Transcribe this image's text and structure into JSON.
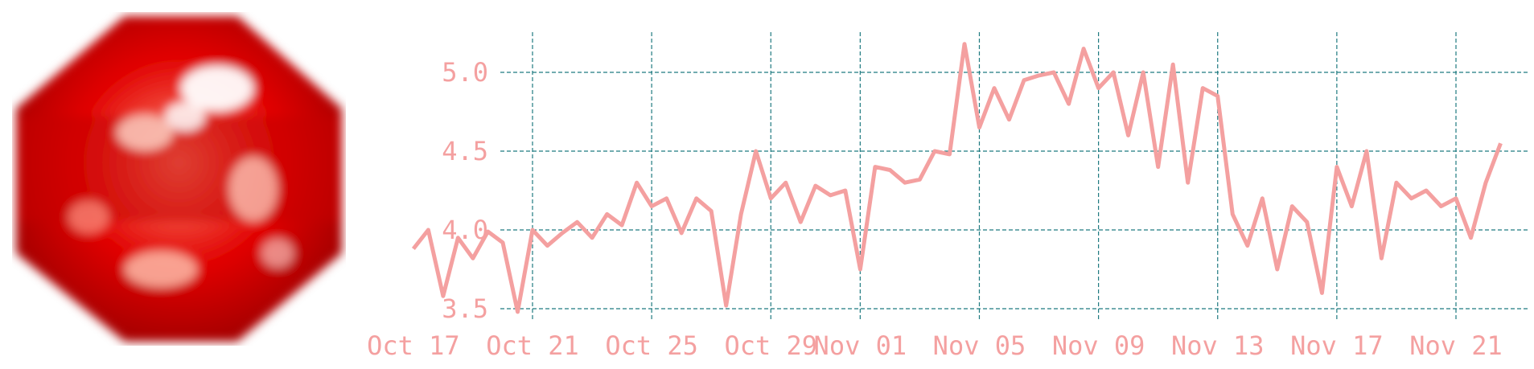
{
  "thumbnail": {
    "name": "red-dice-thumbnail",
    "colors": [
      "#ff0000",
      "#d40000",
      "#ffffff"
    ]
  },
  "chart_data": {
    "type": "line",
    "title": "",
    "xlabel": "",
    "ylabel": "",
    "ylim": [
      3.45,
      5.25
    ],
    "xlim": [
      "2025-10-16",
      "2025-11-23"
    ],
    "grid": true,
    "legend": "none",
    "colors": {
      "line": "#f4a0a0",
      "grid": "#1f7a80",
      "ticks": "#f4a0a0"
    },
    "y_ticks": [
      {
        "value": 3.5,
        "label": "3.5"
      },
      {
        "value": 4.0,
        "label": "4.0"
      },
      {
        "value": 4.5,
        "label": "4.5"
      },
      {
        "value": 5.0,
        "label": "5.0"
      }
    ],
    "x_ticks": [
      {
        "date": "2025-10-17",
        "label": "Oct 17"
      },
      {
        "date": "2025-10-21",
        "label": "Oct 21"
      },
      {
        "date": "2025-10-25",
        "label": "Oct 25"
      },
      {
        "date": "2025-10-29",
        "label": "Oct 29"
      },
      {
        "date": "2025-11-01",
        "label": "Nov 01"
      },
      {
        "date": "2025-11-05",
        "label": "Nov 05"
      },
      {
        "date": "2025-11-09",
        "label": "Nov 09"
      },
      {
        "date": "2025-11-13",
        "label": "Nov 13"
      },
      {
        "date": "2025-11-17",
        "label": "Nov 17"
      },
      {
        "date": "2025-11-21",
        "label": "Nov 21"
      }
    ],
    "series": [
      {
        "x": [
          "2025-10-17",
          "2025-10-17",
          "2025-10-18",
          "2025-10-18",
          "2025-10-19",
          "2025-10-19",
          "2025-10-20",
          "2025-10-20",
          "2025-10-21",
          "2025-10-21",
          "2025-10-22",
          "2025-10-22",
          "2025-10-23",
          "2025-10-23",
          "2025-10-24",
          "2025-10-24",
          "2025-10-25",
          "2025-10-25",
          "2025-10-26",
          "2025-10-26",
          "2025-10-27",
          "2025-10-27",
          "2025-10-28",
          "2025-10-28",
          "2025-10-29",
          "2025-10-29",
          "2025-10-30",
          "2025-10-30",
          "2025-10-31",
          "2025-10-31",
          "2025-11-01",
          "2025-11-01",
          "2025-11-02",
          "2025-11-02",
          "2025-11-03",
          "2025-11-03",
          "2025-11-04",
          "2025-11-04",
          "2025-11-05",
          "2025-11-05",
          "2025-11-06",
          "2025-11-06",
          "2025-11-07",
          "2025-11-07",
          "2025-11-08",
          "2025-11-08",
          "2025-11-09",
          "2025-11-09",
          "2025-11-10",
          "2025-11-10",
          "2025-11-11",
          "2025-11-11",
          "2025-11-12",
          "2025-11-12",
          "2025-11-13",
          "2025-11-13",
          "2025-11-14",
          "2025-11-14",
          "2025-11-15",
          "2025-11-15",
          "2025-11-16",
          "2025-11-16",
          "2025-11-17",
          "2025-11-17",
          "2025-11-18",
          "2025-11-18",
          "2025-11-19",
          "2025-11-19",
          "2025-11-20",
          "2025-11-20",
          "2025-11-21",
          "2025-11-21",
          "2025-11-22",
          "2025-11-22"
        ],
        "values": [
          3.88,
          4.0,
          3.58,
          3.95,
          3.82,
          3.99,
          3.92,
          3.48,
          4.0,
          3.9,
          3.98,
          4.05,
          3.95,
          4.1,
          4.03,
          4.3,
          4.15,
          4.2,
          3.98,
          4.2,
          4.12,
          3.52,
          4.1,
          4.5,
          4.2,
          4.3,
          4.05,
          4.28,
          4.22,
          4.25,
          3.75,
          4.4,
          4.38,
          4.3,
          4.32,
          4.5,
          4.48,
          5.18,
          4.65,
          4.9,
          4.7,
          4.95,
          4.98,
          5.0,
          4.8,
          5.15,
          4.9,
          5.0,
          4.6,
          5.0,
          4.4,
          5.05,
          4.3,
          4.9,
          4.85,
          4.1,
          3.9,
          4.2,
          3.75,
          4.15,
          4.05,
          3.6,
          4.4,
          4.15,
          4.5,
          3.82,
          4.3,
          4.2,
          4.25,
          4.15,
          4.2,
          3.95,
          4.3,
          4.55
        ]
      }
    ]
  }
}
